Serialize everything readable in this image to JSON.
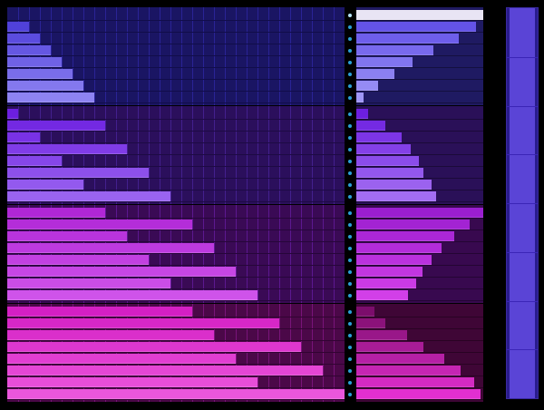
{
  "palette": {
    "groups": [
      {
        "name": "blue",
        "panel_bg": "#1a1563",
        "grid_line": "#2a2396",
        "row_line": "#110d4a",
        "bar_base": "#4636d6",
        "bar_light": "#8e83f2",
        "right_bg": "#1f1a62",
        "right_bar_from": "#5a48e6",
        "right_bar_to": "#9f96f6",
        "dot": "#2a9fd6"
      },
      {
        "name": "violet",
        "panel_bg": "#2b0f5c",
        "grid_line": "#43208e",
        "row_line": "#1d0a44",
        "bar_base": "#6c1fe0",
        "bar_light": "#9a63f0",
        "right_bg": "#2a1058",
        "right_bar_from": "#6c1fe0",
        "right_bar_to": "#a36df2",
        "dot": "#2a9fd6"
      },
      {
        "name": "purple",
        "panel_bg": "#3a0a55",
        "grid_line": "#5c1890",
        "row_line": "#26063a",
        "bar_base": "#b027d6",
        "bar_light": "#cf53ea",
        "right_bg": "#38094f",
        "right_bar_from": "#9b1ed0",
        "right_bar_to": "#d23fe8",
        "dot": "#2a9fd6"
      },
      {
        "name": "magenta",
        "panel_bg": "#4b0848",
        "grid_line": "#79147a",
        "row_line": "#310432",
        "bar_base": "#d41fc4",
        "bar_light": "#ea56dc",
        "right_bg": "#3f0636",
        "right_bar_from": "#7c0d6c",
        "right_bar_to": "#e22fd0",
        "dot": "#2a9fd6"
      }
    ],
    "top_highlight": "#e8e4f4",
    "meter_bg": "#2a1c8e",
    "meter_fill": "#5a44d6",
    "meter_border": "#3a2aa0",
    "meter_tick": "#3b25b7"
  },
  "groups": [
    {
      "left_values": [
        0,
        2,
        3,
        4,
        5,
        6,
        7,
        8
      ],
      "right_values": [
        1.0,
        0.94,
        0.81,
        0.61,
        0.44,
        0.3,
        0.17,
        0.06
      ],
      "right_order": "desc"
    },
    {
      "left_values": [
        1,
        9,
        3,
        11,
        5,
        13,
        7,
        15
      ],
      "right_values": [
        0.09,
        0.23,
        0.36,
        0.43,
        0.49,
        0.53,
        0.59,
        0.63
      ],
      "right_order": "asc"
    },
    {
      "left_values": [
        9,
        17,
        11,
        19,
        13,
        21,
        15,
        23
      ],
      "right_values": [
        1.0,
        0.89,
        0.77,
        0.67,
        0.59,
        0.52,
        0.47,
        0.41
      ],
      "right_order": "desc"
    },
    {
      "left_values": [
        17,
        25,
        19,
        27,
        21,
        29,
        23,
        31
      ],
      "right_values": [
        0.14,
        0.23,
        0.4,
        0.53,
        0.69,
        0.82,
        0.93,
        0.98
      ],
      "right_order": "asc"
    }
  ],
  "grid": {
    "columns": 31,
    "rows_per_group": 8
  },
  "meter": {
    "level": 1.0,
    "ticks": 8
  }
}
